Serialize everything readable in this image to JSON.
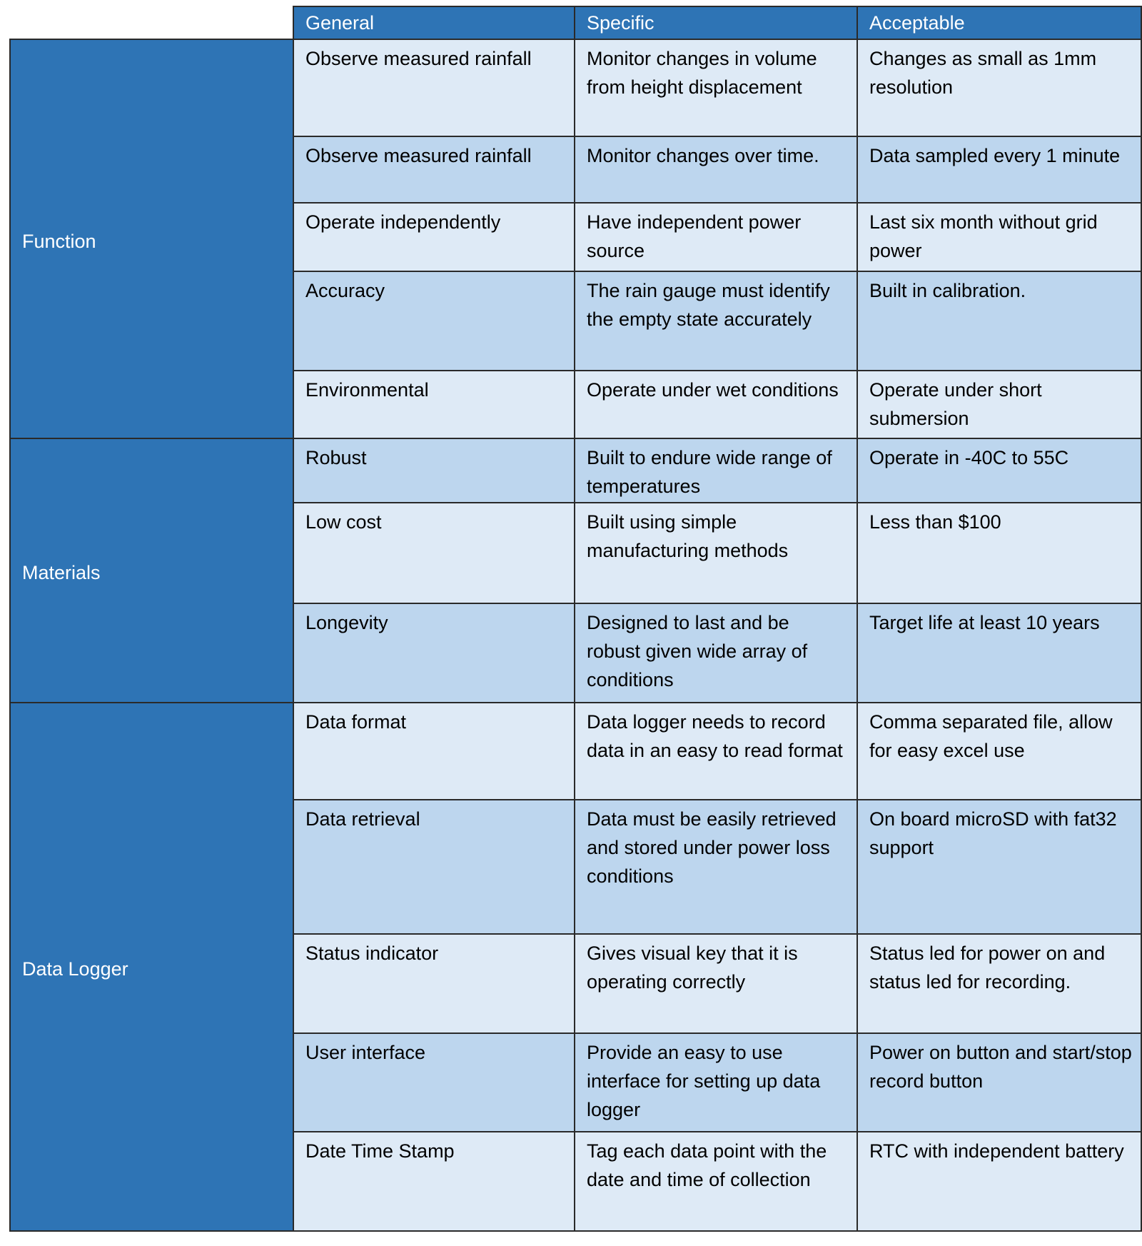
{
  "headers": [
    "General",
    "Specific",
    "Acceptable"
  ],
  "colors": {
    "header": "#2e74b5",
    "row_light": "#deeaf6",
    "row_dark": "#bdd6ee"
  },
  "groups": [
    {
      "label": "Function",
      "rows": [
        [
          "Observe measured rainfall",
          "Monitor changes in volume from height displacement",
          "Changes as small as 1mm resolution"
        ],
        [
          "Observe measured rainfall",
          "Monitor changes over time.",
          "Data sampled every 1 minute"
        ],
        [
          "Operate independently",
          "Have independent power source",
          "Last six month without grid power"
        ],
        [
          "Accuracy",
          "The rain gauge must identify the empty state accurately",
          "Built in calibration."
        ],
        [
          "Environmental",
          "Operate under wet conditions",
          "Operate under short submersion"
        ]
      ]
    },
    {
      "label": "Materials",
      "rows": [
        [
          "Robust",
          "Built to endure wide range of temperatures",
          "Operate in -40C to 55C"
        ],
        [
          "Low cost",
          "Built using simple manufacturing methods",
          "Less than $100"
        ],
        [
          "Longevity",
          "Designed to last and be robust given wide array of conditions",
          "Target life at least 10 years"
        ]
      ]
    },
    {
      "label": "Data Logger",
      "rows": [
        [
          "Data format",
          "Data logger needs to record data in an easy to read format",
          "Comma separated file, allow for easy excel use"
        ],
        [
          "Data retrieval",
          "Data must be easily retrieved and stored under power loss conditions",
          "On board microSD with fat32 support"
        ],
        [
          "Status indicator",
          "Gives visual key that it is operating correctly",
          "Status led for power on and status led for recording."
        ],
        [
          "User interface",
          "Provide an easy to use interface for setting up data logger",
          "Power on button and start/stop record button"
        ],
        [
          "Date Time Stamp",
          "Tag each data point with the date and time of collection",
          "RTC with independent battery"
        ]
      ]
    }
  ]
}
